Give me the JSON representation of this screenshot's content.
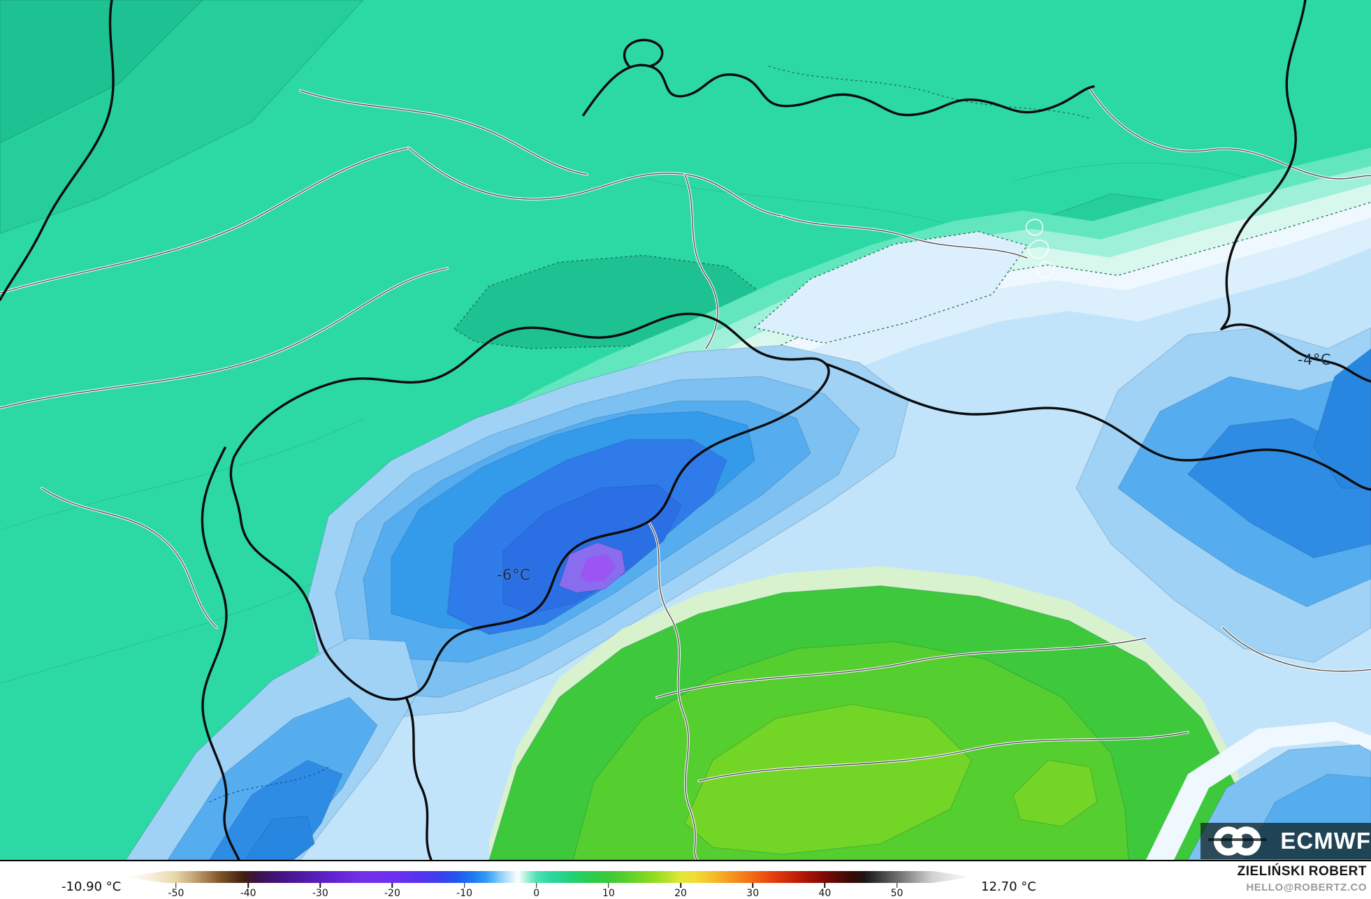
{
  "map": {
    "annotations": [
      {
        "text": "-6°C"
      },
      {
        "text": "-4°C"
      }
    ],
    "description": "ECMWF 2m-temperature filled contour map over the Alpine region"
  },
  "palette": {
    "teal_base": "#2cd9a4",
    "teal_dark": "#25ce9b",
    "teal_darker": "#1ec292",
    "mint_1": "#62e6bd",
    "mint_2": "#9ff0d8",
    "mint_3": "#d9f8ed",
    "pale_blue_1": "#eef8fe",
    "pale_blue_2": "#dceffc",
    "pale_blue_3": "#c2e4fa",
    "blue_1": "#9fd2f5",
    "blue_2": "#7cc1f2",
    "blue_3": "#55adef",
    "blue_4": "#349beb",
    "blue_5": "#2f8ce5",
    "blue_6": "#2786e0",
    "blue_core": "#2f7be9",
    "blue_core_2": "#2b6fe4",
    "purple_ring": "#8a6cee",
    "purple_core": "#9a55f2",
    "green_transition": "#d8f2ce",
    "green_main": "#3ec93d",
    "green_bright": "#55ce30",
    "green_chartreuse": "#73d626",
    "border_black": "#0b0b0b",
    "border_gray": "#4d4d4d",
    "border_casing": "#ffffff",
    "contour_dotted": "#1d6b52"
  },
  "colorbar": {
    "min_label": "-10.90 °C",
    "max_label": "12.70 °C",
    "unit": "°C",
    "ticks": [
      "-50",
      "-40",
      "-30",
      "-20",
      "-10",
      "0",
      "10",
      "20",
      "30",
      "40",
      "50"
    ],
    "range": [
      -55,
      55
    ],
    "gradient_stops": [
      [
        0,
        "#ffffff"
      ],
      [
        3,
        "#f6eed8"
      ],
      [
        5,
        "#ece0bb"
      ],
      [
        6,
        "#e3d3a6"
      ],
      [
        7.7,
        "#c9ad7f"
      ],
      [
        9.4,
        "#a98152"
      ],
      [
        11.1,
        "#7f5527"
      ],
      [
        12.8,
        "#57351a"
      ],
      [
        14,
        "#40200f"
      ],
      [
        15.3,
        "#3a1240"
      ],
      [
        17.9,
        "#43127c"
      ],
      [
        21.3,
        "#521ba8"
      ],
      [
        24.7,
        "#6124d2"
      ],
      [
        28.1,
        "#7330ea"
      ],
      [
        31.5,
        "#6d2ff2"
      ],
      [
        34.9,
        "#5433f0"
      ],
      [
        37.4,
        "#3941ee"
      ],
      [
        39.1,
        "#2356ef"
      ],
      [
        40.8,
        "#1e74f0"
      ],
      [
        42.5,
        "#2f97f2"
      ],
      [
        43.4,
        "#55b2f5"
      ],
      [
        44.2,
        "#86ccf7"
      ],
      [
        45.1,
        "#b9e2fa"
      ],
      [
        45.9,
        "#e6f4fd"
      ],
      [
        46.4,
        "#fdfffe"
      ],
      [
        46.9,
        "#d2f6ea"
      ],
      [
        47.7,
        "#8eecd0"
      ],
      [
        48.6,
        "#4fe0b2"
      ],
      [
        50.3,
        "#2bd89e"
      ],
      [
        52,
        "#23d383"
      ],
      [
        53.7,
        "#25cf62"
      ],
      [
        55.4,
        "#2ecb47"
      ],
      [
        57.1,
        "#3bc93a"
      ],
      [
        58.8,
        "#52ce30"
      ],
      [
        60.5,
        "#6dd428"
      ],
      [
        62.2,
        "#8cda22"
      ],
      [
        63.9,
        "#b2e128"
      ],
      [
        65.6,
        "#e2e73c"
      ],
      [
        67.3,
        "#f0dc38"
      ],
      [
        69,
        "#f4c42e"
      ],
      [
        70.7,
        "#f5a724"
      ],
      [
        72.4,
        "#f4881c"
      ],
      [
        74.1,
        "#f26a14"
      ],
      [
        75.8,
        "#ea4c0f"
      ],
      [
        77.5,
        "#d8340b"
      ],
      [
        79.2,
        "#bf2008"
      ],
      [
        80.9,
        "#a11205"
      ],
      [
        82.6,
        "#7d0a04"
      ],
      [
        84.3,
        "#570a04"
      ],
      [
        86,
        "#330b06"
      ],
      [
        87.3,
        "#1d1412"
      ],
      [
        88.5,
        "#2e2e2e"
      ],
      [
        90.2,
        "#555555"
      ],
      [
        92,
        "#7d7d7d"
      ],
      [
        93.7,
        "#a8a8a8"
      ],
      [
        95.4,
        "#d2d2d2"
      ],
      [
        100,
        "#ffffff"
      ]
    ]
  },
  "branding": {
    "logo_text": "ECMWF",
    "logo_icon": "ecmwf-interlocking-circles-icon"
  },
  "attribution": {
    "name": "ZIELIŃSKI ROBERT",
    "email": "HELLO@ROBERTZ.CO"
  }
}
